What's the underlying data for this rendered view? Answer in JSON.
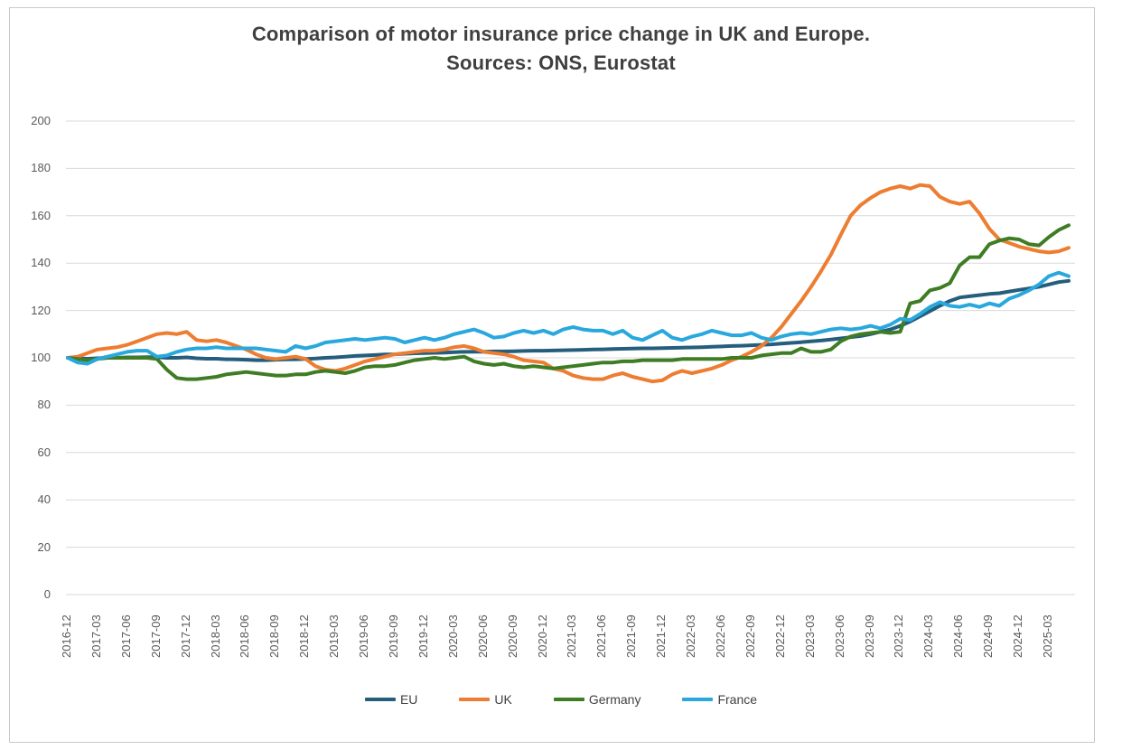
{
  "title": {
    "line1": "Comparison of motor insurance price change in UK and Europe.",
    "line2": "Sources: ONS, Eurostat"
  },
  "chart_data": {
    "type": "line",
    "title": "Comparison of motor insurance price change in UK and Europe. Sources: ONS, Eurostat",
    "x_unit": "month",
    "x_start": "2016-12",
    "x_end": "2025-05",
    "x_tick_labels": [
      "2016-12",
      "2017-03",
      "2017-06",
      "2017-09",
      "2017-12",
      "2018-03",
      "2018-06",
      "2018-09",
      "2018-12",
      "2019-03",
      "2019-06",
      "2019-09",
      "2019-12",
      "2020-03",
      "2020-06",
      "2020-09",
      "2020-12",
      "2021-03",
      "2021-06",
      "2021-09",
      "2021-12",
      "2022-03",
      "2022-06",
      "2022-09",
      "2022-12",
      "2023-03",
      "2023-06",
      "2023-09",
      "2023-12",
      "2024-03",
      "2024-06",
      "2024-09",
      "2024-12",
      "2025-03"
    ],
    "ylim": [
      0,
      200
    ],
    "y_ticks": [
      0,
      20,
      40,
      60,
      80,
      100,
      120,
      140,
      160,
      180,
      200
    ],
    "grid": true,
    "gridline_color": "#d9d9d9",
    "legend_position": "bottom",
    "series": [
      {
        "name": "EU",
        "color": "#255e7d",
        "values": [
          100,
          99.8,
          99.6,
          99.8,
          100,
          100,
          100.2,
          100.2,
          100.3,
          100.3,
          100,
          100,
          100.2,
          99.8,
          99.6,
          99.6,
          99.4,
          99.3,
          99.2,
          99,
          99,
          99.2,
          99.3,
          99.4,
          99.5,
          99.7,
          100,
          100.2,
          100.5,
          100.8,
          101,
          101.2,
          101.4,
          101.5,
          101.7,
          101.9,
          102,
          102.1,
          102.2,
          102.4,
          102.5,
          102.6,
          102.6,
          102.7,
          102.7,
          102.8,
          102.9,
          103,
          103,
          103.1,
          103.2,
          103.3,
          103.4,
          103.5,
          103.6,
          103.7,
          103.8,
          103.9,
          104,
          104,
          104.1,
          104.2,
          104.3,
          104.4,
          104.5,
          104.7,
          104.8,
          105,
          105.1,
          105.3,
          105.5,
          105.7,
          106,
          106.3,
          106.6,
          107,
          107.3,
          107.7,
          108.2,
          108.7,
          109.2,
          110,
          111,
          112,
          113.5,
          115.3,
          117.5,
          119.7,
          122,
          124,
          125.5,
          126,
          126.5,
          127,
          127.3,
          128,
          128.7,
          129.3,
          130,
          131,
          132,
          132.5
        ]
      },
      {
        "name": "UK",
        "color": "#ed7d31",
        "values": [
          100,
          100.5,
          102,
          103.5,
          104,
          104.5,
          105.5,
          107,
          108.5,
          110,
          110.5,
          110,
          111,
          107.5,
          107,
          107.5,
          106.5,
          105,
          103.5,
          101.5,
          100,
          99.5,
          100,
          100.5,
          99.5,
          96.5,
          95,
          94.5,
          95.5,
          97,
          98.5,
          99.5,
          100.5,
          101.5,
          102,
          102.5,
          103,
          103,
          103.5,
          104.5,
          105,
          104,
          102.5,
          102,
          101.5,
          100.5,
          99,
          98.5,
          98,
          95.5,
          94.5,
          92.5,
          91.5,
          91,
          91,
          92.5,
          93.5,
          92,
          91,
          90,
          90.5,
          93,
          94.5,
          93.5,
          94.5,
          95.5,
          97,
          99,
          100.5,
          102.5,
          105,
          108.5,
          113,
          118.5,
          124,
          130,
          136.5,
          143.5,
          152,
          160,
          164.5,
          167.5,
          170,
          171.5,
          172.5,
          171.5,
          173,
          172.5,
          168,
          166,
          165,
          166,
          161,
          154.5,
          150,
          148.5,
          147,
          146,
          145,
          144.5,
          145,
          146.5
        ]
      },
      {
        "name": "Germany",
        "color": "#3e7d23",
        "values": [
          100,
          99.5,
          99,
          99.5,
          100,
          100,
          100,
          100,
          100,
          99.5,
          95,
          91.5,
          91,
          91,
          91.5,
          92,
          93,
          93.5,
          94,
          93.5,
          93,
          92.5,
          92.5,
          93,
          93,
          94,
          94.5,
          94,
          93.5,
          94.5,
          96,
          96.5,
          96.5,
          97,
          98,
          99,
          99.5,
          100,
          99.5,
          100,
          100.5,
          98.5,
          97.5,
          97,
          97.5,
          96.5,
          96,
          96.5,
          96,
          95.5,
          96,
          96.5,
          97,
          97.5,
          98,
          98,
          98.5,
          98.5,
          99,
          99,
          99,
          99,
          99.5,
          99.5,
          99.5,
          99.5,
          99.5,
          100,
          100,
          100,
          101,
          101.5,
          102,
          102,
          104,
          102.5,
          102.5,
          103.5,
          107,
          109,
          110,
          110.5,
          111,
          110.5,
          111,
          123,
          124,
          128.5,
          129.5,
          131.5,
          139,
          142.5,
          142.5,
          148,
          149.5,
          150.5,
          150,
          148,
          147.5,
          151,
          154,
          156
        ]
      },
      {
        "name": "France",
        "color": "#29a8dd",
        "values": [
          100,
          98,
          97.5,
          99.5,
          100.5,
          101.5,
          102.5,
          103,
          103,
          100.5,
          101,
          102.5,
          103.5,
          104,
          104,
          104.5,
          104,
          104,
          104,
          104,
          103.5,
          103,
          102.5,
          105,
          104,
          105,
          106.5,
          107,
          107.5,
          108,
          107.5,
          108,
          108.5,
          108,
          106.5,
          107.5,
          108.5,
          107.5,
          108.5,
          110,
          111,
          112,
          110.5,
          108.5,
          109,
          110.5,
          111.5,
          110.5,
          111.5,
          110,
          112,
          113,
          112,
          111.5,
          111.5,
          110,
          111.5,
          108.5,
          107.5,
          109.5,
          111.5,
          108.5,
          107.5,
          109,
          110,
          111.5,
          110.5,
          109.5,
          109.5,
          110.5,
          108.5,
          107.5,
          109,
          110,
          110.5,
          110,
          111,
          112,
          112.5,
          112,
          112.5,
          113.5,
          112.5,
          114,
          116.5,
          116,
          118.5,
          121.5,
          123.5,
          122,
          121.5,
          122.5,
          121.5,
          123,
          122,
          125,
          126.5,
          128.5,
          131,
          134.5,
          136,
          134.5
        ]
      }
    ]
  }
}
